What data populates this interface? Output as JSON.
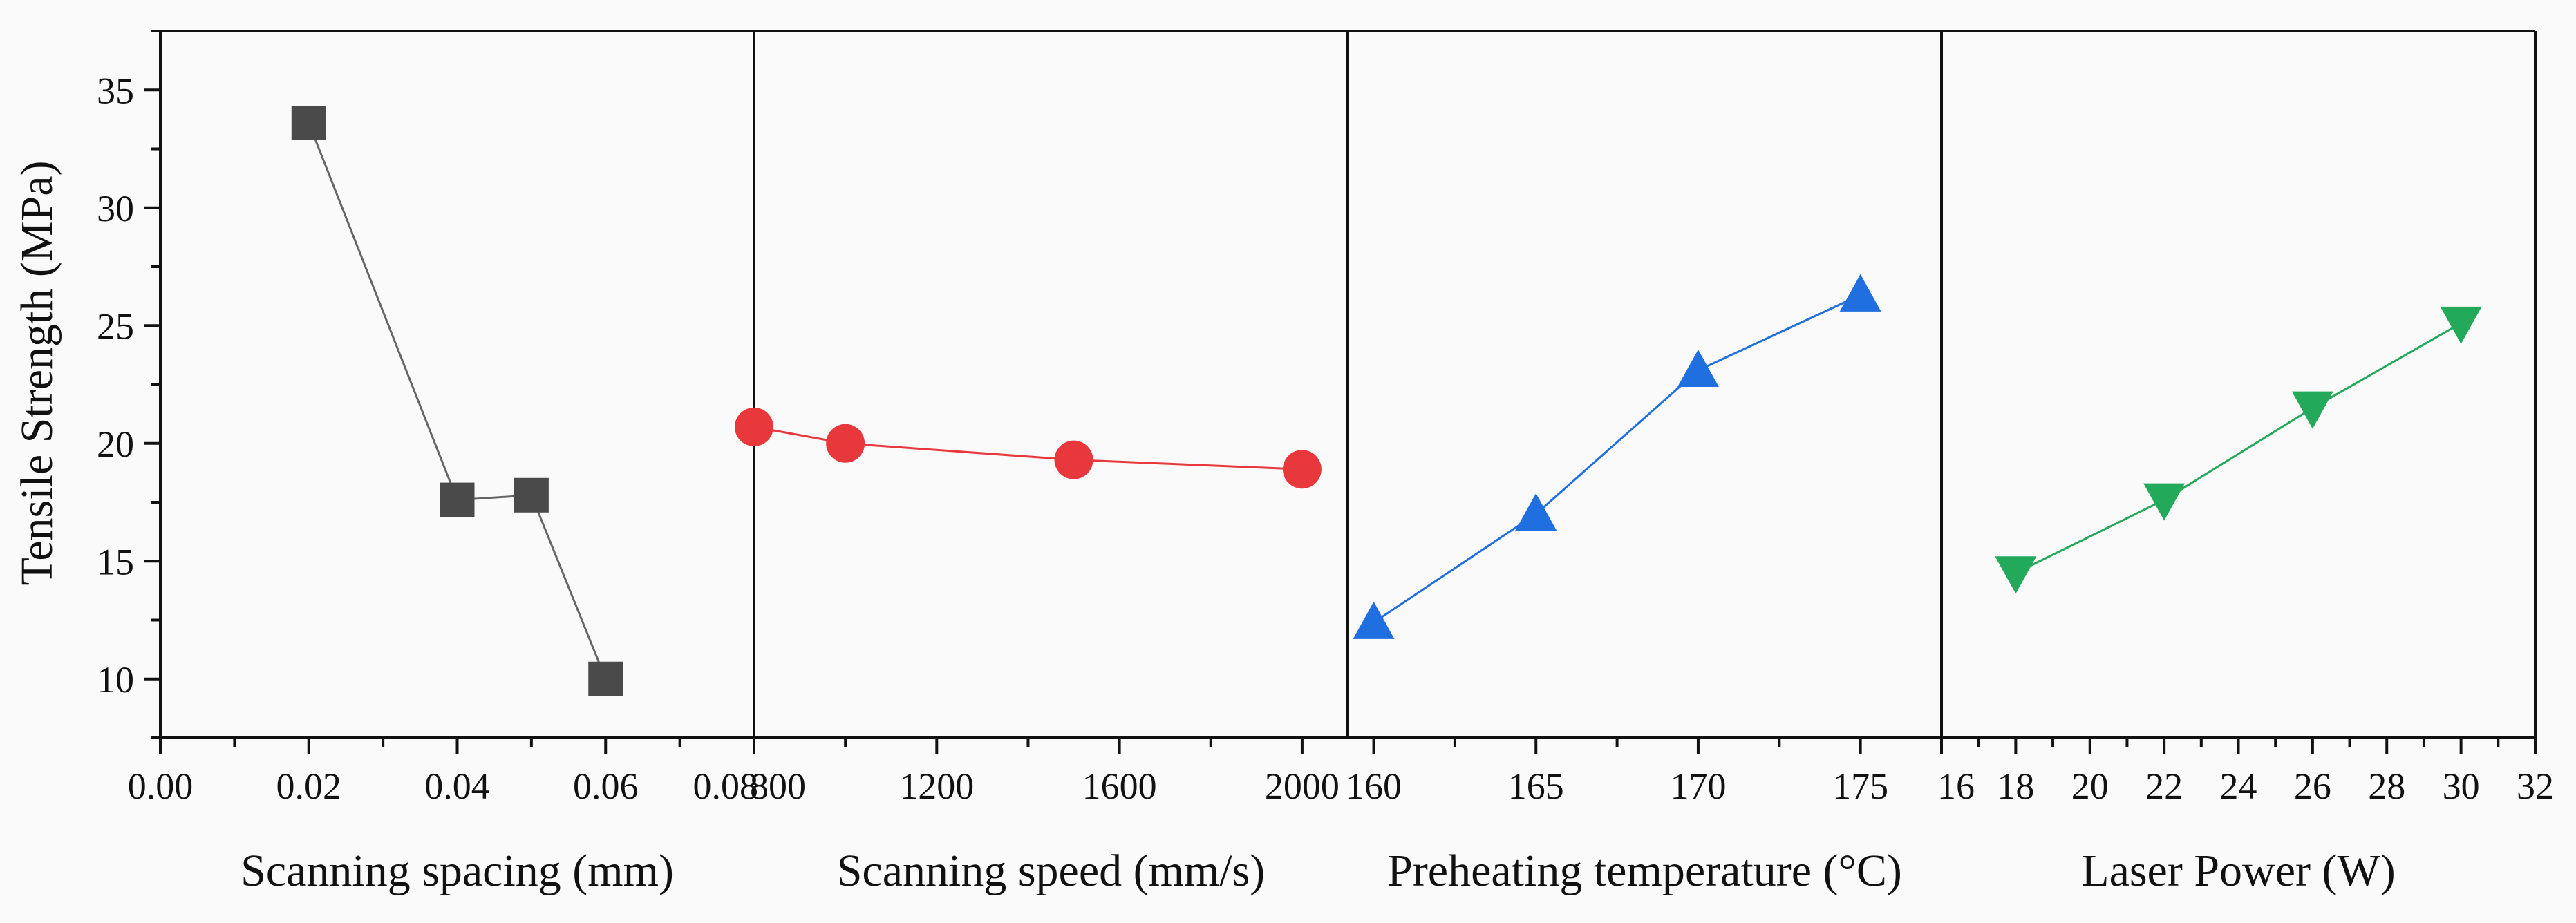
{
  "chart_data": {
    "type": "line",
    "ylabel": "Tensile Strength (MPa)",
    "ylim": [
      7.5,
      37.5
    ],
    "yticks": [
      10,
      15,
      20,
      25,
      30,
      35
    ],
    "ytick_labels": [
      "10",
      "15",
      "20",
      "25",
      "30",
      "35"
    ],
    "colors": {
      "axis": "#111111",
      "background": "#fafafa"
    },
    "panels": [
      {
        "id": "spacing",
        "xlabel": "Scanning spacing (mm)",
        "xlim": [
          0.0,
          0.08
        ],
        "xticks": [
          0.0,
          0.02,
          0.04,
          0.06,
          0.08
        ],
        "xtick_labels": [
          "0.00",
          "0.02",
          "0.04",
          "0.06",
          "0.08"
        ],
        "minor_per_major": 2,
        "marker": "square",
        "color": "#4a4a4a",
        "line_color": "#666666",
        "series": {
          "name": "Scanning spacing",
          "x": [
            0.02,
            0.04,
            0.05,
            0.06
          ],
          "y": [
            33.6,
            17.6,
            17.8,
            10.0
          ]
        }
      },
      {
        "id": "speed",
        "xlabel": "Scanning speed (mm/s)",
        "xlim": [
          800,
          2100
        ],
        "xticks": [
          800,
          1200,
          1600,
          2000
        ],
        "xtick_labels": [
          "800",
          "1200",
          "1600",
          "2000"
        ],
        "minor_per_major": 2,
        "marker": "circle",
        "color": "#e8383b",
        "line_color": "#e8383b",
        "series": {
          "name": "Scanning speed",
          "x": [
            800,
            1000,
            1500,
            2000
          ],
          "y": [
            20.7,
            20.0,
            19.3,
            18.9
          ]
        }
      },
      {
        "id": "temperature",
        "xlabel": "Preheating temperature (°C)",
        "xlim": [
          159.2,
          177.5
        ],
        "xticks": [
          160,
          165,
          170,
          175
        ],
        "xtick_labels": [
          "160",
          "165",
          "170",
          "175"
        ],
        "minor_per_major": 2,
        "marker": "triangle-up",
        "color": "#1f6fe0",
        "line_color": "#1f6fe0",
        "series": {
          "name": "Preheating temperature",
          "x": [
            160,
            165,
            170,
            175
          ],
          "y": [
            12.4,
            17.0,
            23.1,
            26.3
          ]
        }
      },
      {
        "id": "power",
        "xlabel": "Laser Power (W)",
        "xlim": [
          16,
          32
        ],
        "xticks": [
          16,
          18,
          20,
          22,
          24,
          26,
          28,
          30,
          32
        ],
        "xtick_labels": [
          "16",
          "18",
          "20",
          "22",
          "24",
          "26",
          "28",
          "30",
          "32"
        ],
        "minor_per_major": 2,
        "marker": "triangle-down",
        "color": "#22a95a",
        "line_color": "#22a95a",
        "series": {
          "name": "Laser Power",
          "x": [
            18,
            22,
            26,
            30
          ],
          "y": [
            14.5,
            17.6,
            21.5,
            25.1
          ]
        }
      }
    ]
  }
}
